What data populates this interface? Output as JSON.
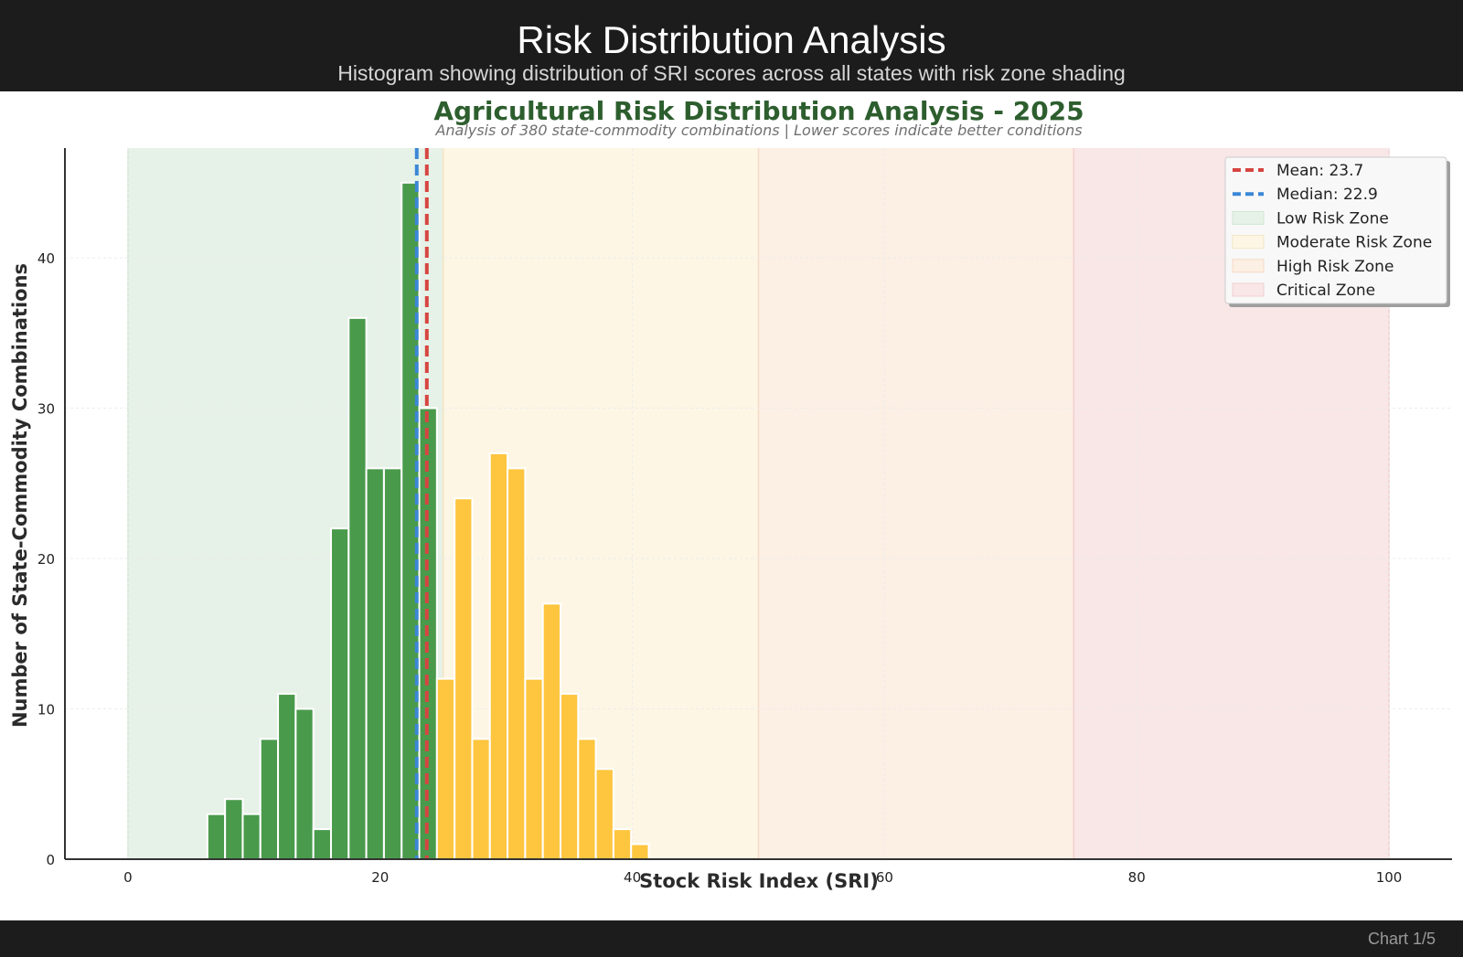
{
  "header": {
    "title": "Risk Distribution Analysis",
    "subtitle": "Histogram showing distribution of SRI scores across all states with risk zone shading"
  },
  "footer": {
    "page_indicator": "Chart 1/5"
  },
  "chart_data": {
    "type": "bar",
    "title": "Agricultural Risk Distribution Analysis - 2025",
    "subtitle": "Analysis of 380 state-commodity combinations | Lower scores indicate better conditions",
    "xlabel": "Stock Risk Index (SRI)",
    "ylabel": "Number of State-Commodity Combinations",
    "xlim": [
      -5,
      105
    ],
    "ylim": [
      0,
      47.3
    ],
    "xticks": [
      0,
      20,
      40,
      60,
      80,
      100
    ],
    "yticks": [
      0,
      10,
      20,
      30,
      40
    ],
    "grid": true,
    "bin_width": 1.4,
    "bins": [
      {
        "x0": 6.3,
        "count": 3,
        "zone": "low"
      },
      {
        "x0": 7.7,
        "count": 4,
        "zone": "low"
      },
      {
        "x0": 9.1,
        "count": 3,
        "zone": "low"
      },
      {
        "x0": 10.5,
        "count": 8,
        "zone": "low"
      },
      {
        "x0": 11.9,
        "count": 11,
        "zone": "low"
      },
      {
        "x0": 13.3,
        "count": 10,
        "zone": "low"
      },
      {
        "x0": 14.7,
        "count": 2,
        "zone": "low"
      },
      {
        "x0": 16.1,
        "count": 22,
        "zone": "low"
      },
      {
        "x0": 17.5,
        "count": 36,
        "zone": "low"
      },
      {
        "x0": 18.9,
        "count": 26,
        "zone": "low"
      },
      {
        "x0": 20.3,
        "count": 26,
        "zone": "low"
      },
      {
        "x0": 21.7,
        "count": 45,
        "zone": "low"
      },
      {
        "x0": 23.1,
        "count": 30,
        "zone": "low"
      },
      {
        "x0": 24.5,
        "count": 12,
        "zone": "moderate"
      },
      {
        "x0": 25.9,
        "count": 24,
        "zone": "moderate"
      },
      {
        "x0": 27.3,
        "count": 8,
        "zone": "moderate"
      },
      {
        "x0": 28.7,
        "count": 27,
        "zone": "moderate"
      },
      {
        "x0": 30.1,
        "count": 26,
        "zone": "moderate"
      },
      {
        "x0": 31.5,
        "count": 12,
        "zone": "moderate"
      },
      {
        "x0": 32.9,
        "count": 17,
        "zone": "moderate"
      },
      {
        "x0": 34.3,
        "count": 11,
        "zone": "moderate"
      },
      {
        "x0": 35.7,
        "count": 8,
        "zone": "moderate"
      },
      {
        "x0": 37.1,
        "count": 6,
        "zone": "moderate"
      },
      {
        "x0": 38.5,
        "count": 2,
        "zone": "moderate"
      },
      {
        "x0": 39.9,
        "count": 1,
        "zone": "moderate"
      }
    ],
    "zones": [
      {
        "name": "Low Risk Zone",
        "key": "low",
        "from": 0,
        "to": 25,
        "fill": "#e6f1e7",
        "edge": "#d0e6d2",
        "bar": "#4a9a4c"
      },
      {
        "name": "Moderate Risk Zone",
        "key": "moderate",
        "from": 25,
        "to": 50,
        "fill": "#fdf6e5",
        "edge": "#f4e6c2",
        "bar": "#fec63f"
      },
      {
        "name": "High Risk Zone",
        "key": "high",
        "from": 50,
        "to": 75,
        "fill": "#fcefe4",
        "edge": "#f6dac6",
        "bar": "#f0a060"
      },
      {
        "name": "Critical Zone",
        "key": "critical",
        "from": 75,
        "to": 100,
        "fill": "#f9e6e6",
        "edge": "#f2d0d0",
        "bar": "#d9534f"
      }
    ],
    "reference_lines": [
      {
        "label": "Mean: 23.7",
        "value": 23.7,
        "color": "#d64541"
      },
      {
        "label": "Median: 22.9",
        "value": 22.9,
        "color": "#3b86d6"
      }
    ],
    "legend_position": "top-right",
    "colors": {
      "title": "#2d5e2e",
      "axis_label": "#2b2b2b",
      "tick": "#222222",
      "grid": "#ececec",
      "subtitle": "#707070"
    }
  }
}
